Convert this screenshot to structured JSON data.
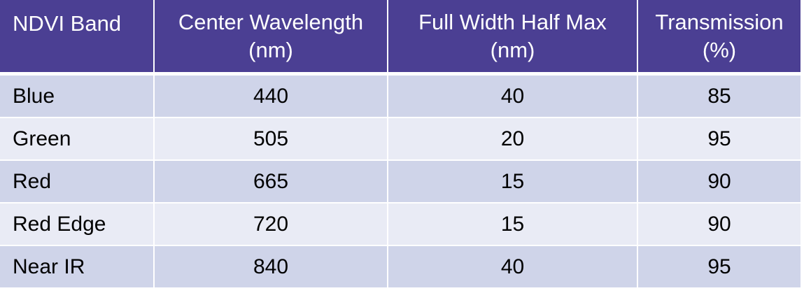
{
  "table": {
    "headers": [
      {
        "lines": [
          "NDVI Band"
        ]
      },
      {
        "lines": [
          "Center Wavelength",
          "(nm)"
        ]
      },
      {
        "lines": [
          "Full Width Half Max",
          "(nm)"
        ]
      },
      {
        "lines": [
          "Transmission",
          "(%)"
        ]
      }
    ],
    "rows": [
      {
        "band": "Blue",
        "center": "440",
        "fwhm": "40",
        "transmission": "85"
      },
      {
        "band": "Green",
        "center": "505",
        "fwhm": "20",
        "transmission": "95"
      },
      {
        "band": "Red",
        "center": "665",
        "fwhm": "15",
        "transmission": "90"
      },
      {
        "band": "Red Edge",
        "center": "720",
        "fwhm": "15",
        "transmission": "90"
      },
      {
        "band": "Near IR",
        "center": "840",
        "fwhm": "40",
        "transmission": "95"
      }
    ]
  },
  "colors": {
    "header_bg": "#4b3f93",
    "header_text": "#ffffff",
    "row_odd_bg": "#cfd4e9",
    "row_even_bg": "#e9ebf5"
  }
}
